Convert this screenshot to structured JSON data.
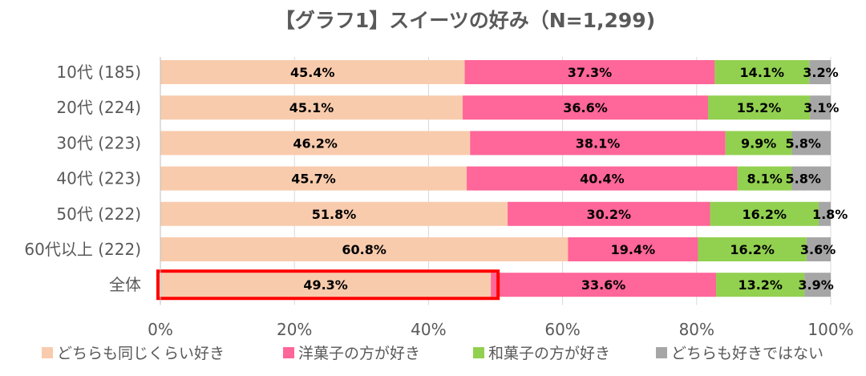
{
  "chart_data": {
    "type": "bar",
    "orientation": "horizontal",
    "stacked": true,
    "title": "【グラフ1】スイーツの好み（N=1,299)",
    "categories": [
      "10代 (185)",
      "20代 (224)",
      "30代 (223)",
      "40代 (223)",
      "50代 (222)",
      "60代以上 (222)",
      "全体"
    ],
    "series": [
      {
        "name": "どちらも同じくらい好き",
        "color": "#F8CBAD",
        "values": [
          45.4,
          45.1,
          46.2,
          45.7,
          51.8,
          60.8,
          49.3
        ]
      },
      {
        "name": "洋菓子の方が好き",
        "color": "#FF6699",
        "values": [
          37.3,
          36.6,
          38.1,
          40.4,
          30.2,
          19.4,
          33.6
        ]
      },
      {
        "name": "和菓子の方が好き",
        "color": "#92D050",
        "values": [
          14.1,
          15.2,
          9.9,
          8.1,
          16.2,
          16.2,
          13.2
        ]
      },
      {
        "name": "どちらも好きではない",
        "color": "#A6A6A6",
        "values": [
          3.2,
          3.1,
          5.8,
          5.8,
          1.8,
          3.6,
          3.9
        ]
      }
    ],
    "data_labels": [
      [
        "45.4%",
        "37.3%",
        "14.1%",
        "3.2%"
      ],
      [
        "45.1%",
        "36.6%",
        "15.2%",
        "3.1%"
      ],
      [
        "46.2%",
        "38.1%",
        "9.9%",
        "5.8%"
      ],
      [
        "45.7%",
        "40.4%",
        "8.1%",
        "5.8%"
      ],
      [
        "51.8%",
        "30.2%",
        "16.2%",
        "1.8%"
      ],
      [
        "60.8%",
        "19.4%",
        "16.2%",
        "3.6%"
      ],
      [
        "49.3%",
        "33.6%",
        "13.2%",
        "3.9%"
      ]
    ],
    "xlim": [
      0,
      100
    ],
    "xticks": [
      0,
      20,
      40,
      60,
      80,
      100
    ],
    "xtick_labels": [
      "0%",
      "20%",
      "40%",
      "60%",
      "80%",
      "100%"
    ],
    "grid": true,
    "legend_position": "bottom",
    "highlight": {
      "category": "全体",
      "series": "どちらも同じくらい好き",
      "color": "#FF0000"
    }
  }
}
